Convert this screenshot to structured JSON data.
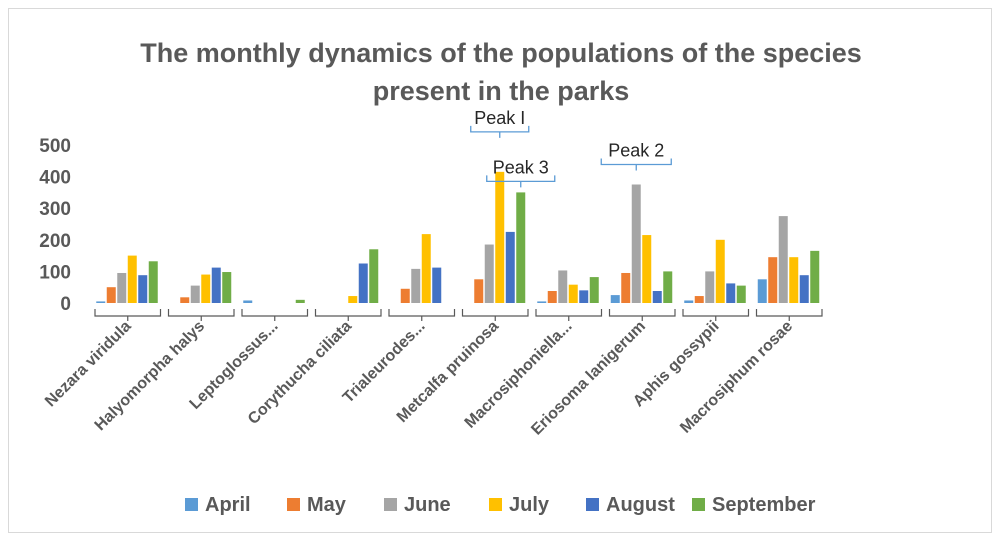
{
  "chart_data": {
    "type": "bar",
    "title_lines": [
      "The monthly dynamics of the populations of the species",
      "present in the parks"
    ],
    "categories": [
      "Nezara viridula",
      "Halyomorpha halys",
      "Leptoglossus...",
      "Corythucha ciliata",
      "Trialeurodes...",
      "Metcalfa pruinosa",
      "Macrosiphoniella...",
      "Eriosoma lanigerum",
      "Aphis gossypii",
      "Macrosiphum rosae"
    ],
    "series": [
      {
        "name": "April",
        "color": "#5b9bd5",
        "values": [
          5,
          0,
          8,
          0,
          0,
          0,
          5,
          25,
          8,
          75
        ]
      },
      {
        "name": "May",
        "color": "#ed7d31",
        "values": [
          50,
          18,
          0,
          0,
          45,
          75,
          38,
          95,
          22,
          145
        ]
      },
      {
        "name": "June",
        "color": "#a5a5a5",
        "values": [
          95,
          55,
          0,
          0,
          108,
          185,
          103,
          375,
          100,
          275
        ]
      },
      {
        "name": "July",
        "color": "#ffc000",
        "values": [
          150,
          90,
          0,
          22,
          218,
          415,
          58,
          215,
          200,
          145
        ]
      },
      {
        "name": "August",
        "color": "#4472c4",
        "values": [
          88,
          112,
          0,
          125,
          112,
          225,
          40,
          38,
          62,
          88
        ]
      },
      {
        "name": "September",
        "color": "#70ad47",
        "values": [
          132,
          98,
          10,
          170,
          0,
          350,
          82,
          100,
          55,
          165
        ]
      }
    ],
    "yticks": [
      0,
      100,
      200,
      300,
      400,
      500
    ],
    "ylim": [
      0,
      500
    ],
    "grid": false,
    "legend_position": "bottom",
    "annotations": [
      {
        "text": "Peak I",
        "category": "Metcalfa pruinosa",
        "series": "July"
      },
      {
        "text": "Peak 3",
        "category": "Metcalfa pruinosa",
        "series": "September"
      },
      {
        "text": "Peak 2",
        "category": "Eriosoma lanigerum",
        "series": "June"
      }
    ]
  }
}
